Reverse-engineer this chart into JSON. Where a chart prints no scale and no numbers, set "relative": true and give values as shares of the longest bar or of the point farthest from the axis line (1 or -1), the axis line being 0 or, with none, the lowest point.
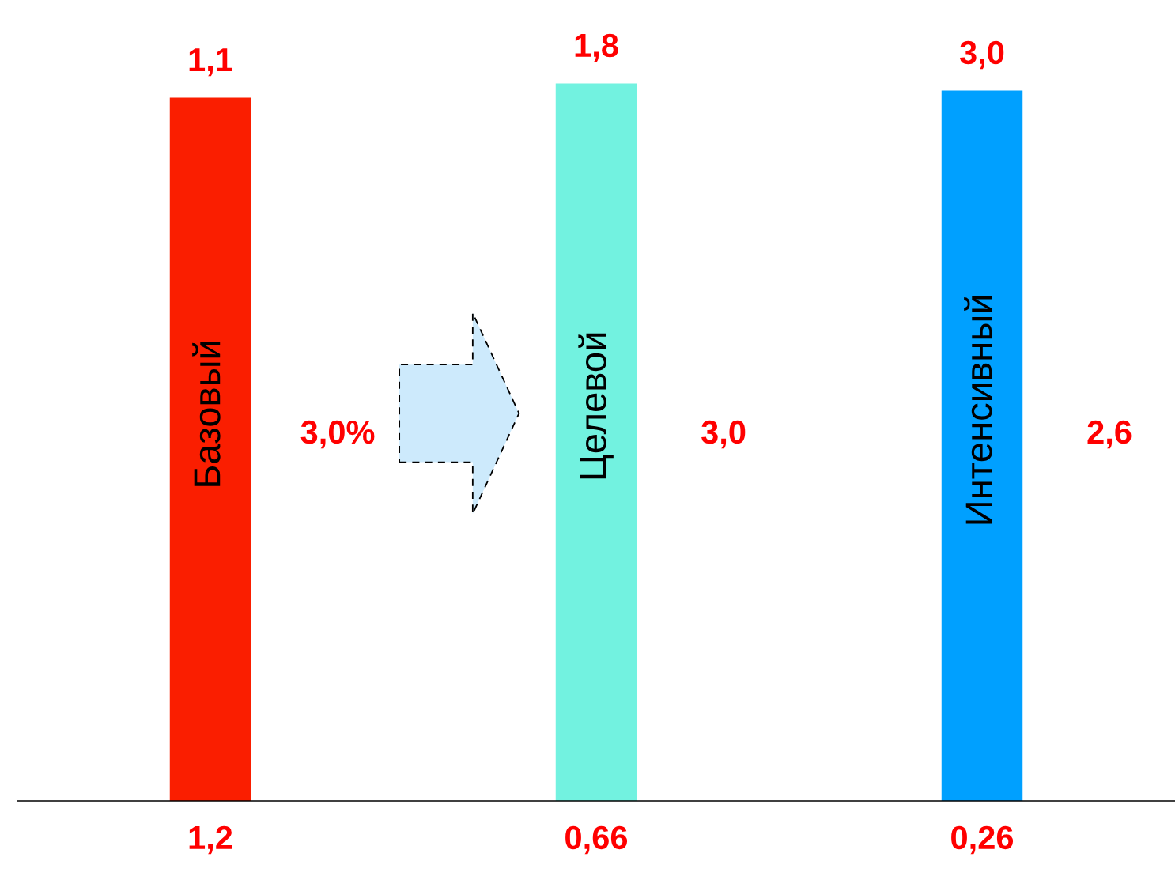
{
  "chart_data": {
    "type": "bar",
    "relative": true,
    "categories": [
      "Базовый",
      "Целевой",
      "Интенсивный"
    ],
    "values": [
      0.98,
      1,
      0.99
    ],
    "colors": [
      "#fa1e00",
      "#72f2e0",
      "#00a0ff"
    ],
    "annotations": [
      "1,1",
      "1,8",
      "3,0",
      "3,0%",
      "3,0",
      "2,6",
      "1,2",
      "0,66",
      "0,26"
    ]
  }
}
